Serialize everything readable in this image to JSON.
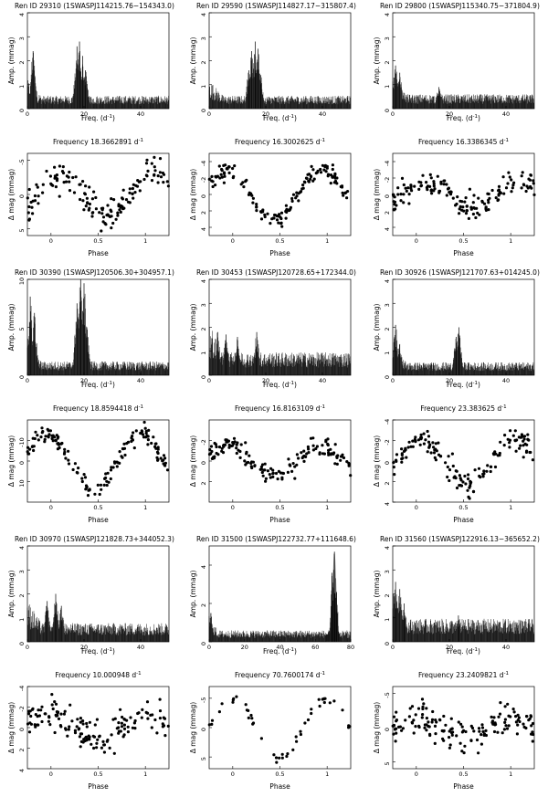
{
  "figure": {
    "labels": {
      "amp": "Amp. (mmag)",
      "freq": "Freq. (d",
      "freq_close": ")",
      "inv": "-1",
      "dmag": "Δ mag (mmag)",
      "phase": "Phase",
      "freq_prefix": "Frequency "
    }
  },
  "chart_data": [
    {
      "type": "line",
      "id": "periodogram-29310",
      "title": "Ren ID 29310  (1SWASPJ114215.76−154343.0)",
      "xlim": [
        0,
        50
      ],
      "ylim": [
        0,
        4
      ],
      "xticks": [
        0,
        20,
        40
      ],
      "yticks": [
        0,
        1,
        2,
        3,
        4
      ],
      "peaks": [
        {
          "x": 2.0,
          "y": 2.4
        },
        {
          "x": 17.5,
          "y": 2.6
        },
        {
          "x": 18.4,
          "y": 2.8
        },
        {
          "x": 19.5,
          "y": 2.2
        },
        {
          "x": 20.5,
          "y": 1.6
        }
      ],
      "noise": 0.45
    },
    {
      "type": "scatter",
      "id": "phase-29310",
      "frequency": "18.3662891",
      "xlim": [
        -0.25,
        1.25
      ],
      "ylim": [
        6,
        -6
      ],
      "yticks": [
        -5,
        0,
        5
      ],
      "xticks": [
        0,
        0.5,
        1
      ],
      "amplitude": 3.2,
      "min_phase": 0.6,
      "scatter": 1.8
    },
    {
      "type": "line",
      "id": "periodogram-29590",
      "title": "Ren ID 29590  (1SWASPJ114827.17−315807.4)",
      "xlim": [
        0,
        50
      ],
      "ylim": [
        0,
        4
      ],
      "xticks": [
        0,
        20,
        40
      ],
      "yticks": [
        0,
        1,
        2,
        3,
        4
      ],
      "peaks": [
        {
          "x": 15.0,
          "y": 2.4
        },
        {
          "x": 16.3,
          "y": 2.8
        },
        {
          "x": 17.3,
          "y": 2.5
        },
        {
          "x": 14.0,
          "y": 1.6
        },
        {
          "x": 18.2,
          "y": 1.4
        }
      ],
      "noise": 0.45
    },
    {
      "type": "scatter",
      "id": "phase-29590",
      "frequency": "16.3002625",
      "xlim": [
        -0.25,
        1.25
      ],
      "ylim": [
        5,
        -5
      ],
      "yticks": [
        -4,
        -2,
        0,
        2,
        4
      ],
      "xticks": [
        0,
        0.5,
        1
      ],
      "amplitude": 3.0,
      "min_phase": 0.45,
      "scatter": 0.8
    },
    {
      "type": "line",
      "id": "periodogram-29800",
      "title": "Ren ID 29800  (1SWASPJ115340.75−371804.9)",
      "xlim": [
        0,
        50
      ],
      "ylim": [
        0,
        4
      ],
      "xticks": [
        0,
        20,
        40
      ],
      "yticks": [
        0,
        1,
        2,
        3,
        4
      ],
      "peaks": [
        {
          "x": 1.0,
          "y": 1.8
        },
        {
          "x": 2.5,
          "y": 1.5
        },
        {
          "x": 16.3,
          "y": 0.9
        }
      ],
      "noise": 0.5
    },
    {
      "type": "scatter",
      "id": "phase-29800",
      "frequency": "16.3386345",
      "xlim": [
        -0.25,
        1.25
      ],
      "ylim": [
        5,
        -5
      ],
      "yticks": [
        -4,
        -2,
        0,
        2,
        4
      ],
      "xticks": [
        0,
        0.5,
        1
      ],
      "amplitude": 1.6,
      "min_phase": 0.6,
      "scatter": 1.3
    },
    {
      "type": "line",
      "id": "periodogram-30390",
      "title": "Ren ID 30390  (1SWASPJ120506.30+304957.1)",
      "xlim": [
        0,
        50
      ],
      "ylim": [
        0,
        10
      ],
      "xticks": [
        0,
        20,
        40
      ],
      "yticks": [
        0,
        5,
        10
      ],
      "peaks": [
        {
          "x": 1.0,
          "y": 8.2
        },
        {
          "x": 2.5,
          "y": 6.5
        },
        {
          "x": 17.5,
          "y": 7.5
        },
        {
          "x": 18.8,
          "y": 10.5
        },
        {
          "x": 20.0,
          "y": 9.6
        },
        {
          "x": 21.0,
          "y": 5.0
        }
      ],
      "noise": 1.2
    },
    {
      "type": "scatter",
      "id": "phase-30390",
      "frequency": "18.8594418",
      "xlim": [
        -0.25,
        1.25
      ],
      "ylim": [
        20,
        -20
      ],
      "yticks": [
        -10,
        0,
        10
      ],
      "xticks": [
        0,
        0.5,
        1
      ],
      "amplitude": 13,
      "min_phase": 0.45,
      "scatter": 3.5
    },
    {
      "type": "line",
      "id": "periodogram-30453",
      "title": "Ren ID 30453  (1SWASPJ120728.65+172344.0)",
      "xlim": [
        0,
        50
      ],
      "ylim": [
        0,
        4
      ],
      "xticks": [
        0,
        20,
        40
      ],
      "yticks": [
        0,
        1,
        2,
        3,
        4
      ],
      "peaks": [
        {
          "x": 3.0,
          "y": 1.8
        },
        {
          "x": 6.0,
          "y": 1.7
        },
        {
          "x": 10.0,
          "y": 1.6
        },
        {
          "x": 16.8,
          "y": 1.8
        }
      ],
      "noise": 0.8
    },
    {
      "type": "scatter",
      "id": "phase-30453",
      "frequency": "16.8163109",
      "xlim": [
        -0.25,
        1.25
      ],
      "ylim": [
        4,
        -4
      ],
      "yticks": [
        -2,
        0,
        2
      ],
      "xticks": [
        0,
        0.5,
        1
      ],
      "amplitude": 1.5,
      "min_phase": 0.45,
      "scatter": 0.8
    },
    {
      "type": "line",
      "id": "periodogram-30926",
      "title": "Ren ID 30926  (1SWASPJ121707.63+014245.0)",
      "xlim": [
        0,
        50
      ],
      "ylim": [
        0,
        4
      ],
      "xticks": [
        0,
        20,
        40
      ],
      "yticks": [
        0,
        1,
        2,
        3,
        4
      ],
      "peaks": [
        {
          "x": 1.0,
          "y": 2.1
        },
        {
          "x": 2.5,
          "y": 1.3
        },
        {
          "x": 23.4,
          "y": 2.0
        },
        {
          "x": 22.4,
          "y": 1.6
        }
      ],
      "noise": 0.45
    },
    {
      "type": "scatter",
      "id": "phase-30926",
      "frequency": "23.383625",
      "xlim": [
        -0.25,
        1.25
      ],
      "ylim": [
        4,
        -4
      ],
      "yticks": [
        -4,
        -2,
        0,
        2,
        4
      ],
      "xticks": [
        0,
        0.5,
        1
      ],
      "amplitude": 2.2,
      "min_phase": 0.55,
      "scatter": 1.0
    },
    {
      "type": "line",
      "id": "periodogram-30970",
      "title": "Ren ID 30970  (1SWASPJ121828.73+344052.3)",
      "xlim": [
        0,
        50
      ],
      "ylim": [
        0,
        4
      ],
      "xticks": [
        0,
        20,
        40
      ],
      "yticks": [
        0,
        1,
        2,
        3,
        4
      ],
      "peaks": [
        {
          "x": 7.0,
          "y": 1.7
        },
        {
          "x": 10.0,
          "y": 2.0
        },
        {
          "x": 12.0,
          "y": 1.5
        }
      ],
      "noise": 0.65
    },
    {
      "type": "scatter",
      "id": "phase-30970",
      "frequency": "10.000948",
      "xlim": [
        -0.25,
        1.25
      ],
      "ylim": [
        4,
        -4
      ],
      "yticks": [
        -4,
        -2,
        0,
        2,
        4
      ],
      "xticks": [
        0,
        0.5,
        1
      ],
      "amplitude": 1.2,
      "min_phase": 0.5,
      "scatter": 1.3
    },
    {
      "type": "line",
      "id": "periodogram-31500",
      "title": "Ren ID 31500  (1SWASPJ122732.77+111648.6)",
      "xlim": [
        0,
        80
      ],
      "ylim": [
        0,
        5
      ],
      "xticks": [
        0,
        20,
        40,
        60,
        80
      ],
      "yticks": [
        0,
        2,
        4
      ],
      "peaks": [
        {
          "x": 1.0,
          "y": 1.5
        },
        {
          "x": 69.5,
          "y": 3.6
        },
        {
          "x": 70.8,
          "y": 4.7
        },
        {
          "x": 72.0,
          "y": 2.6
        }
      ],
      "noise": 0.5,
      "grey_band": [
        66,
        74
      ]
    },
    {
      "type": "scatter",
      "id": "phase-31500",
      "frequency": "70.7600174",
      "xlim": [
        -0.25,
        1.25
      ],
      "ylim": [
        7,
        -7
      ],
      "yticks": [
        -5,
        0,
        5
      ],
      "xticks": [
        0,
        0.5,
        1
      ],
      "amplitude": 5.0,
      "min_phase": 0.5,
      "scatter": 0.8,
      "sparse": true
    },
    {
      "type": "line",
      "id": "periodogram-31560",
      "title": "Ren ID 31560  (1SWASPJ122916.13−365652.2)",
      "xlim": [
        0,
        50
      ],
      "ylim": [
        0,
        4
      ],
      "xticks": [
        0,
        20,
        40
      ],
      "yticks": [
        0,
        1,
        2,
        3,
        4
      ],
      "peaks": [
        {
          "x": 1.0,
          "y": 2.5
        },
        {
          "x": 2.5,
          "y": 2.2
        },
        {
          "x": 4.0,
          "y": 1.6
        },
        {
          "x": 23.2,
          "y": 1.1
        }
      ],
      "noise": 0.8
    },
    {
      "type": "scatter",
      "id": "phase-31560",
      "frequency": "23.2409821",
      "xlim": [
        -0.25,
        1.25
      ],
      "ylim": [
        6,
        -6
      ],
      "yticks": [
        -5,
        0,
        5
      ],
      "xticks": [
        0,
        0.5,
        1
      ],
      "amplitude": 1.2,
      "min_phase": 0.5,
      "scatter": 1.8
    }
  ]
}
